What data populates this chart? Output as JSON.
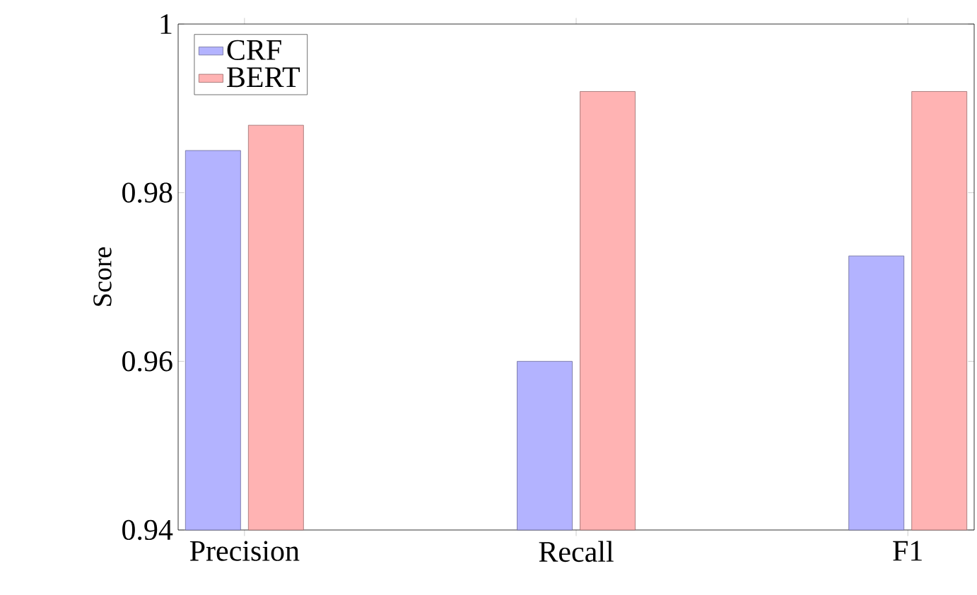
{
  "chart_data": {
    "type": "bar",
    "ylabel": "Score",
    "categories": [
      "Precision",
      "Recall",
      "F1"
    ],
    "series": [
      {
        "name": "CRF",
        "color": "#b3b3ff",
        "values": [
          0.985,
          0.96,
          0.9725
        ]
      },
      {
        "name": "BERT",
        "color": "#ffb3b3",
        "values": [
          0.988,
          0.992,
          0.992
        ]
      }
    ],
    "ylim": [
      0.94,
      1
    ],
    "yticks": [
      0.94,
      0.96,
      0.98,
      1
    ],
    "legend": "top left",
    "grid": false
  }
}
